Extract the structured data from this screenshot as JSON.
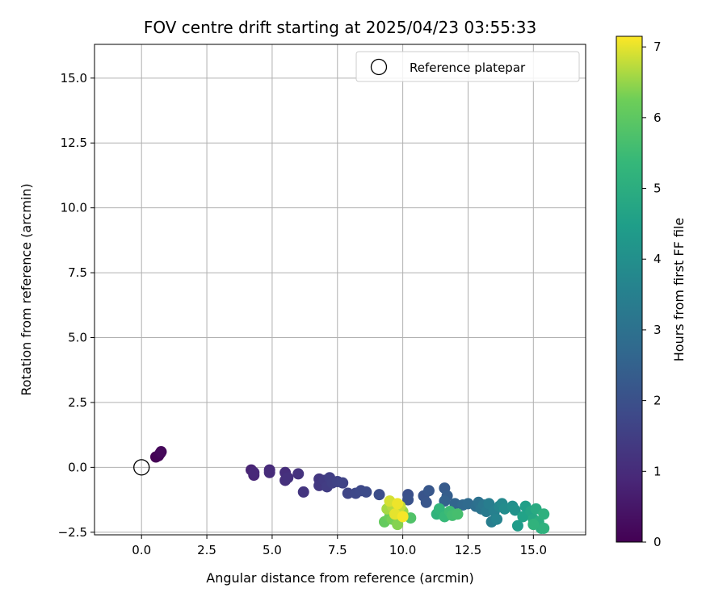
{
  "chart_data": {
    "type": "scatter",
    "title": "FOV centre drift starting at 2025/04/23 03:55:33",
    "xlabel": "Angular distance from reference (arcmin)",
    "ylabel": "Rotation from reference (arcmin)",
    "xlim": [
      -1.8,
      17
    ],
    "ylim": [
      -2.6,
      16.3
    ],
    "x_ticks": [
      "0.0",
      "2.5",
      "5.0",
      "7.5",
      "10.0",
      "12.5",
      "15.0"
    ],
    "y_ticks": [
      "−2.5",
      "0.0",
      "2.5",
      "5.0",
      "7.5",
      "10.0",
      "12.5",
      "15.0"
    ],
    "grid": true,
    "legend_position": "upper right",
    "legend": [
      "Reference platepar"
    ],
    "reference_point": {
      "x": 0,
      "y": 0,
      "label": "Reference platepar"
    },
    "colorbar": {
      "label": "Hours from first FF file",
      "min": 0,
      "max": 7.15,
      "ticks": [
        "0",
        "1",
        "2",
        "3",
        "4",
        "5",
        "6",
        "7"
      ],
      "colormap": "viridis"
    },
    "points": [
      {
        "x": 0.55,
        "y": 0.4,
        "t": 0.0
      },
      {
        "x": 0.65,
        "y": 0.45,
        "t": 0.05
      },
      {
        "x": 0.72,
        "y": 0.55,
        "t": 0.1
      },
      {
        "x": 0.75,
        "y": 0.6,
        "t": 0.15
      },
      {
        "x": 4.2,
        "y": -0.1,
        "t": 0.8
      },
      {
        "x": 4.3,
        "y": -0.3,
        "t": 0.85
      },
      {
        "x": 4.3,
        "y": -0.2,
        "t": 0.9
      },
      {
        "x": 4.9,
        "y": -0.1,
        "t": 0.95
      },
      {
        "x": 4.9,
        "y": -0.2,
        "t": 1.0
      },
      {
        "x": 5.5,
        "y": -0.2,
        "t": 1.05
      },
      {
        "x": 5.5,
        "y": -0.5,
        "t": 1.1
      },
      {
        "x": 5.6,
        "y": -0.4,
        "t": 1.15
      },
      {
        "x": 6.0,
        "y": -0.25,
        "t": 1.2
      },
      {
        "x": 6.2,
        "y": -0.95,
        "t": 1.25
      },
      {
        "x": 6.8,
        "y": -0.45,
        "t": 1.3
      },
      {
        "x": 6.8,
        "y": -0.7,
        "t": 1.35
      },
      {
        "x": 7.0,
        "y": -0.5,
        "t": 1.4
      },
      {
        "x": 7.1,
        "y": -0.75,
        "t": 1.45
      },
      {
        "x": 7.2,
        "y": -0.4,
        "t": 1.5
      },
      {
        "x": 7.3,
        "y": -0.6,
        "t": 1.55
      },
      {
        "x": 7.5,
        "y": -0.55,
        "t": 1.6
      },
      {
        "x": 7.7,
        "y": -0.6,
        "t": 1.65
      },
      {
        "x": 7.9,
        "y": -1.0,
        "t": 1.7
      },
      {
        "x": 8.2,
        "y": -1.0,
        "t": 1.75
      },
      {
        "x": 8.4,
        "y": -0.9,
        "t": 1.8
      },
      {
        "x": 8.6,
        "y": -0.95,
        "t": 1.85
      },
      {
        "x": 9.1,
        "y": -1.05,
        "t": 1.9
      },
      {
        "x": 10.2,
        "y": -1.05,
        "t": 2.0
      },
      {
        "x": 10.2,
        "y": -1.25,
        "t": 2.05
      },
      {
        "x": 10.8,
        "y": -1.1,
        "t": 2.1
      },
      {
        "x": 11.0,
        "y": -0.9,
        "t": 2.2
      },
      {
        "x": 10.9,
        "y": -1.35,
        "t": 2.15
      },
      {
        "x": 11.6,
        "y": -0.8,
        "t": 2.3
      },
      {
        "x": 11.7,
        "y": -1.1,
        "t": 2.4
      },
      {
        "x": 11.6,
        "y": -1.3,
        "t": 2.5
      },
      {
        "x": 12.0,
        "y": -1.4,
        "t": 2.6
      },
      {
        "x": 12.3,
        "y": -1.45,
        "t": 2.7
      },
      {
        "x": 12.5,
        "y": -1.4,
        "t": 2.8
      },
      {
        "x": 12.8,
        "y": -1.5,
        "t": 2.9
      },
      {
        "x": 12.9,
        "y": -1.35,
        "t": 3.0
      },
      {
        "x": 13.0,
        "y": -1.6,
        "t": 3.1
      },
      {
        "x": 13.1,
        "y": -1.45,
        "t": 3.2
      },
      {
        "x": 13.2,
        "y": -1.7,
        "t": 3.3
      },
      {
        "x": 13.3,
        "y": -1.4,
        "t": 3.4
      },
      {
        "x": 13.4,
        "y": -2.1,
        "t": 3.45
      },
      {
        "x": 13.5,
        "y": -1.7,
        "t": 3.5
      },
      {
        "x": 13.6,
        "y": -2.0,
        "t": 3.6
      },
      {
        "x": 13.7,
        "y": -1.5,
        "t": 3.7
      },
      {
        "x": 13.8,
        "y": -1.4,
        "t": 3.8
      },
      {
        "x": 13.9,
        "y": -1.6,
        "t": 3.9
      },
      {
        "x": 14.2,
        "y": -1.5,
        "t": 4.0
      },
      {
        "x": 14.3,
        "y": -1.65,
        "t": 4.1
      },
      {
        "x": 14.4,
        "y": -2.25,
        "t": 4.4
      },
      {
        "x": 14.7,
        "y": -1.5,
        "t": 4.5
      },
      {
        "x": 14.6,
        "y": -1.9,
        "t": 4.6
      },
      {
        "x": 14.9,
        "y": -1.7,
        "t": 4.7
      },
      {
        "x": 15.0,
        "y": -2.0,
        "t": 4.8
      },
      {
        "x": 15.1,
        "y": -1.6,
        "t": 4.9
      },
      {
        "x": 15.2,
        "y": -2.1,
        "t": 5.0
      },
      {
        "x": 15.3,
        "y": -2.35,
        "t": 5.05
      },
      {
        "x": 15.4,
        "y": -1.8,
        "t": 5.1
      },
      {
        "x": 15.4,
        "y": -2.35,
        "t": 5.15
      },
      {
        "x": 15.0,
        "y": -2.2,
        "t": 5.2
      },
      {
        "x": 11.3,
        "y": -1.8,
        "t": 5.2
      },
      {
        "x": 11.4,
        "y": -1.6,
        "t": 5.3
      },
      {
        "x": 11.6,
        "y": -1.9,
        "t": 5.4
      },
      {
        "x": 11.8,
        "y": -1.7,
        "t": 5.5
      },
      {
        "x": 11.9,
        "y": -1.85,
        "t": 5.6
      },
      {
        "x": 12.1,
        "y": -1.8,
        "t": 5.65
      },
      {
        "x": 10.3,
        "y": -1.95,
        "t": 5.8
      },
      {
        "x": 10.0,
        "y": -1.8,
        "t": 5.9
      },
      {
        "x": 9.3,
        "y": -2.1,
        "t": 6.1
      },
      {
        "x": 9.5,
        "y": -1.9,
        "t": 6.2
      },
      {
        "x": 9.6,
        "y": -2.0,
        "t": 6.3
      },
      {
        "x": 9.8,
        "y": -2.2,
        "t": 6.4
      },
      {
        "x": 10.0,
        "y": -1.7,
        "t": 6.5
      },
      {
        "x": 9.4,
        "y": -1.6,
        "t": 6.6
      },
      {
        "x": 9.6,
        "y": -1.5,
        "t": 6.7
      },
      {
        "x": 9.9,
        "y": -1.5,
        "t": 6.8
      },
      {
        "x": 9.5,
        "y": -1.3,
        "t": 6.9
      },
      {
        "x": 9.7,
        "y": -1.8,
        "t": 7.0
      },
      {
        "x": 9.8,
        "y": -1.4,
        "t": 7.05
      },
      {
        "x": 10.0,
        "y": -1.9,
        "t": 7.1
      }
    ]
  }
}
